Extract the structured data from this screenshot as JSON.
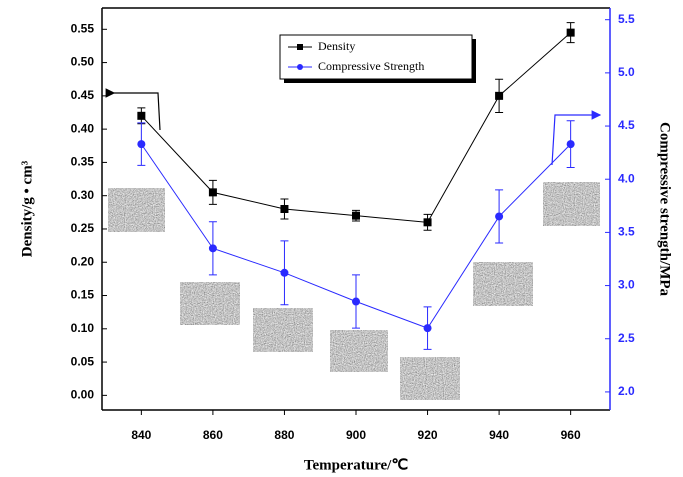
{
  "chart_data": {
    "type": "line",
    "x_label": "Temperature/℃",
    "y_label": "Density/g • cm³",
    "y2_label": "Compressive strength/MPa",
    "x": [
      840,
      860,
      880,
      900,
      920,
      940,
      960
    ],
    "xlim": [
      829,
      971
    ],
    "xticks": [
      840,
      860,
      880,
      900,
      920,
      940,
      960
    ],
    "ylim": [
      -0.022,
      0.582
    ],
    "yticks": [
      {
        "value": 0,
        "label": "0.00"
      },
      0.05,
      {
        "value": 0.1,
        "label": "0.10"
      },
      0.15,
      {
        "value": 0.2,
        "label": "0.20"
      },
      0.25,
      {
        "value": 0.3,
        "label": "0.30"
      },
      0.35,
      {
        "value": 0.4,
        "label": "0.40"
      },
      0.45,
      {
        "value": 0.5,
        "label": "0.50"
      },
      0.55
    ],
    "y2lim": [
      1.83,
      5.61
    ],
    "y2ticks": [
      {
        "value": 2,
        "label": "2.0"
      },
      2.5,
      {
        "value": 3,
        "label": "3.0"
      },
      3.5,
      {
        "value": 4,
        "label": "4.0"
      },
      4.5,
      {
        "value": 5,
        "label": "5.0"
      },
      5.5
    ],
    "y2_color": "#2a2aff",
    "series": [
      {
        "name": "Density",
        "color": "#000000",
        "marker": "square",
        "values": [
          0.42,
          0.305,
          0.28,
          0.27,
          0.26,
          0.45,
          0.545
        ],
        "errors": [
          0.012,
          0.018,
          0.015,
          0.008,
          0.012,
          0.025,
          0.015
        ]
      },
      {
        "name": "Compressive Strength",
        "color": "#2a2aff",
        "marker": "circle",
        "axis": "y2",
        "values": [
          4.33,
          3.35,
          3.12,
          2.85,
          2.6,
          3.65,
          4.33
        ],
        "errors": [
          0.2,
          0.25,
          0.3,
          0.25,
          0.2,
          0.25,
          0.22
        ]
      }
    ]
  }
}
